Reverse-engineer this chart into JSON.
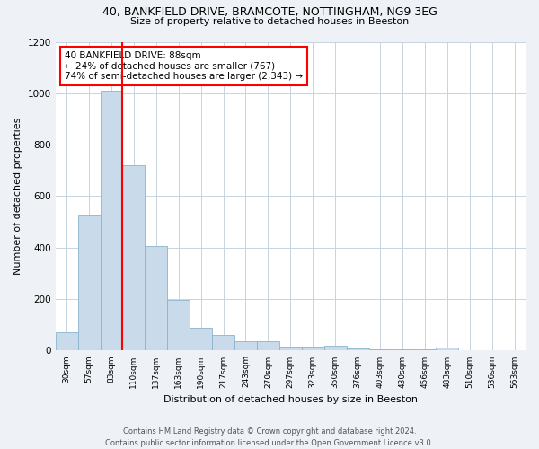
{
  "title1": "40, BANKFIELD DRIVE, BRAMCOTE, NOTTINGHAM, NG9 3EG",
  "title2": "Size of property relative to detached houses in Beeston",
  "xlabel": "Distribution of detached houses by size in Beeston",
  "ylabel": "Number of detached properties",
  "bar_labels": [
    "30sqm",
    "57sqm",
    "83sqm",
    "110sqm",
    "137sqm",
    "163sqm",
    "190sqm",
    "217sqm",
    "243sqm",
    "270sqm",
    "297sqm",
    "323sqm",
    "350sqm",
    "376sqm",
    "403sqm",
    "430sqm",
    "456sqm",
    "483sqm",
    "510sqm",
    "536sqm",
    "563sqm"
  ],
  "bar_values": [
    70,
    530,
    1010,
    720,
    405,
    197,
    90,
    60,
    37,
    35,
    17,
    17,
    20,
    7,
    5,
    5,
    5,
    12,
    2,
    0,
    0
  ],
  "bar_color": "#c9daea",
  "bar_edge_color": "#8ab4cc",
  "vline_color": "red",
  "vline_x": 2.5,
  "annotation_text": "40 BANKFIELD DRIVE: 88sqm\n← 24% of detached houses are smaller (767)\n74% of semi-detached houses are larger (2,343) →",
  "annotation_box_color": "white",
  "annotation_box_edge_color": "red",
  "ylim": [
    0,
    1200
  ],
  "yticks": [
    0,
    200,
    400,
    600,
    800,
    1000,
    1200
  ],
  "footer1": "Contains HM Land Registry data © Crown copyright and database right 2024.",
  "footer2": "Contains public sector information licensed under the Open Government Licence v3.0.",
  "bg_color": "#eef2f6",
  "plot_bg_color": "#ffffff",
  "grid_color": "#c8d4de",
  "title1_fontsize": 9,
  "title2_fontsize": 8,
  "xlabel_fontsize": 8,
  "ylabel_fontsize": 8,
  "xtick_fontsize": 6.5,
  "ytick_fontsize": 7.5,
  "annot_fontsize": 7.5,
  "footer_fontsize": 6
}
